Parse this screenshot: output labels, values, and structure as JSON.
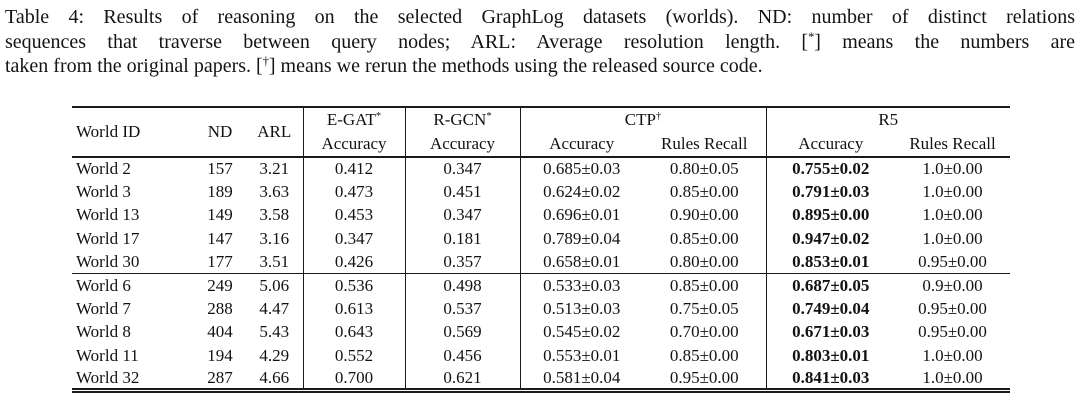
{
  "caption": {
    "line1": "Table 4: Results of reasoning on the selected GraphLog datasets (worlds). ND: number of distinct relations",
    "line2_pre": "sequences that traverse between query nodes; ARL: Average resolution length. [",
    "line2_sup": "*",
    "line2_post": "] means the numbers are",
    "line3_pre": "taken from the original papers. [",
    "line3_sup": "†",
    "line3_post": "] means we rerun the methods using the released source code."
  },
  "table": {
    "header": {
      "world_id": "World ID",
      "nd": "ND",
      "arl": "ARL",
      "egat_name": "E-GAT",
      "egat_sup": "*",
      "rgcn_name": "R-GCN",
      "rgcn_sup": "*",
      "ctp_name": "CTP",
      "ctp_sup": "†",
      "r5_name": "R5",
      "accuracy": "Accuracy",
      "rules_recall": "Rules Recall"
    },
    "groups": [
      {
        "rows": [
          {
            "world": "World 2",
            "nd": "157",
            "arl": "3.21",
            "egat": "0.412",
            "rgcn": "0.347",
            "ctp_acc": "0.685±0.03",
            "ctp_recall": "0.80±0.05",
            "r5_acc": "0.755±0.02",
            "r5_recall": "1.0±0.00"
          },
          {
            "world": "World 3",
            "nd": "189",
            "arl": "3.63",
            "egat": "0.473",
            "rgcn": "0.451",
            "ctp_acc": "0.624±0.02",
            "ctp_recall": "0.85±0.00",
            "r5_acc": "0.791±0.03",
            "r5_recall": "1.0±0.00"
          },
          {
            "world": "World 13",
            "nd": "149",
            "arl": "3.58",
            "egat": "0.453",
            "rgcn": "0.347",
            "ctp_acc": "0.696±0.01",
            "ctp_recall": "0.90±0.00",
            "r5_acc": "0.895±0.00",
            "r5_recall": "1.0±0.00"
          },
          {
            "world": "World 17",
            "nd": "147",
            "arl": "3.16",
            "egat": "0.347",
            "rgcn": "0.181",
            "ctp_acc": "0.789±0.04",
            "ctp_recall": "0.85±0.00",
            "r5_acc": "0.947±0.02",
            "r5_recall": "1.0±0.00"
          },
          {
            "world": "World 30",
            "nd": "177",
            "arl": "3.51",
            "egat": "0.426",
            "rgcn": "0.357",
            "ctp_acc": "0.658±0.01",
            "ctp_recall": "0.80±0.00",
            "r5_acc": "0.853±0.01",
            "r5_recall": "0.95±0.00"
          }
        ]
      },
      {
        "rows": [
          {
            "world": "World 6",
            "nd": "249",
            "arl": "5.06",
            "egat": "0.536",
            "rgcn": "0.498",
            "ctp_acc": "0.533±0.03",
            "ctp_recall": "0.85±0.00",
            "r5_acc": "0.687±0.05",
            "r5_recall": "0.9±0.00"
          },
          {
            "world": "World 7",
            "nd": "288",
            "arl": "4.47",
            "egat": "0.613",
            "rgcn": "0.537",
            "ctp_acc": "0.513±0.03",
            "ctp_recall": "0.75±0.05",
            "r5_acc": "0.749±0.04",
            "r5_recall": "0.95±0.00"
          },
          {
            "world": "World 8",
            "nd": "404",
            "arl": "5.43",
            "egat": "0.643",
            "rgcn": "0.569",
            "ctp_acc": "0.545±0.02",
            "ctp_recall": "0.70±0.00",
            "r5_acc": "0.671±0.03",
            "r5_recall": "0.95±0.00"
          },
          {
            "world": "World 11",
            "nd": "194",
            "arl": "4.29",
            "egat": "0.552",
            "rgcn": "0.456",
            "ctp_acc": "0.553±0.01",
            "ctp_recall": "0.85±0.00",
            "r5_acc": "0.803±0.01",
            "r5_recall": "1.0±0.00"
          },
          {
            "world": "World 32",
            "nd": "287",
            "arl": "4.66",
            "egat": "0.700",
            "rgcn": "0.621",
            "ctp_acc": "0.581±0.04",
            "ctp_recall": "0.95±0.00",
            "r5_acc": "0.841±0.03",
            "r5_recall": "1.0±0.00"
          }
        ]
      }
    ]
  },
  "colors": {
    "text": "#111111",
    "rule": "#1a1a1a",
    "background": "#ffffff",
    "best_result_weight": "bold"
  }
}
